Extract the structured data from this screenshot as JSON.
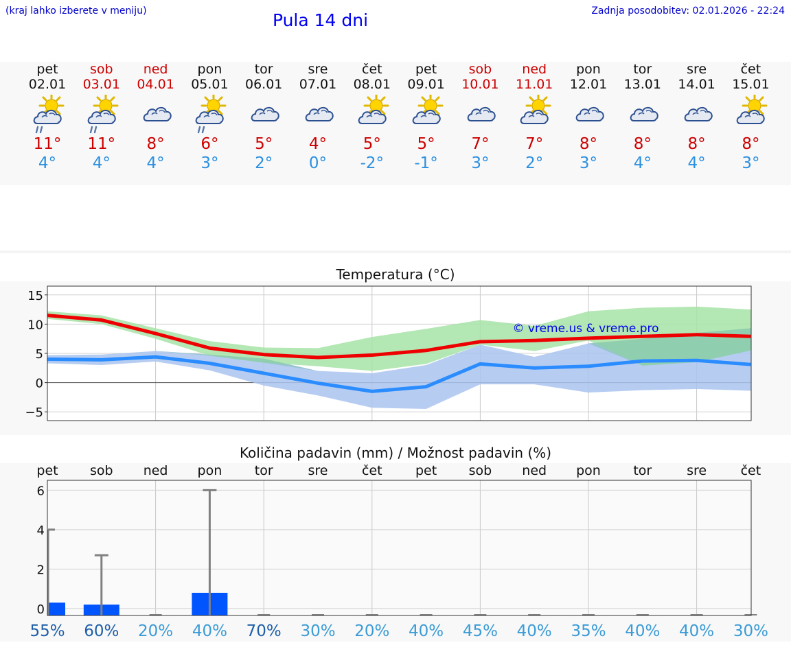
{
  "header": {
    "note": "(kraj lahko izberete v meniju)",
    "title": "Pula 14 dni",
    "updated_label": "Zadnja posodobitev:",
    "updated_value": "02.01.2026 - 22:24"
  },
  "days": [
    {
      "name": "pet",
      "date": "02.01",
      "weekend": false,
      "icon": "partly-cloudy-rain-icon",
      "tmax": "11°",
      "tmin": "4°"
    },
    {
      "name": "sob",
      "date": "03.01",
      "weekend": true,
      "icon": "partly-cloudy-rain-icon",
      "tmax": "11°",
      "tmin": "4°"
    },
    {
      "name": "ned",
      "date": "04.01",
      "weekend": true,
      "icon": "cloudy-icon",
      "tmax": "8°",
      "tmin": "4°"
    },
    {
      "name": "pon",
      "date": "05.01",
      "weekend": false,
      "icon": "partly-cloudy-rain-icon",
      "tmax": "6°",
      "tmin": "3°"
    },
    {
      "name": "tor",
      "date": "06.01",
      "weekend": false,
      "icon": "cloudy-icon",
      "tmax": "5°",
      "tmin": "2°"
    },
    {
      "name": "sre",
      "date": "07.01",
      "weekend": false,
      "icon": "cloudy-icon",
      "tmax": "4°",
      "tmin": "0°"
    },
    {
      "name": "čet",
      "date": "08.01",
      "weekend": false,
      "icon": "partly-cloudy-icon",
      "tmax": "5°",
      "tmin": "-2°"
    },
    {
      "name": "pet",
      "date": "09.01",
      "weekend": false,
      "icon": "partly-cloudy-icon",
      "tmax": "5°",
      "tmin": "-1°"
    },
    {
      "name": "sob",
      "date": "10.01",
      "weekend": true,
      "icon": "cloudy-icon",
      "tmax": "7°",
      "tmin": "3°"
    },
    {
      "name": "ned",
      "date": "11.01",
      "weekend": true,
      "icon": "partly-cloudy-icon",
      "tmax": "7°",
      "tmin": "2°"
    },
    {
      "name": "pon",
      "date": "12.01",
      "weekend": false,
      "icon": "cloudy-icon",
      "tmax": "8°",
      "tmin": "3°"
    },
    {
      "name": "tor",
      "date": "13.01",
      "weekend": false,
      "icon": "cloudy-icon",
      "tmax": "8°",
      "tmin": "4°"
    },
    {
      "name": "sre",
      "date": "14.01",
      "weekend": false,
      "icon": "cloudy-icon",
      "tmax": "8°",
      "tmin": "4°"
    },
    {
      "name": "čet",
      "date": "15.01",
      "weekend": false,
      "icon": "partly-cloudy-icon",
      "tmax": "8°",
      "tmin": "3°"
    }
  ],
  "colors": {
    "weekday": "#111111",
    "weekend": "#cc0000",
    "tmax_line": "#ee0000",
    "tmin_line": "#2a8cff",
    "tmax_band": "#a6e3a6",
    "tmin_band": "#a9c4ef",
    "band_overlap": "#7cbfae",
    "precip_bar": "#0055ff",
    "whisker": "#808080",
    "prob_low": "#3a9bd6",
    "prob_high": "#1f5fa8"
  },
  "chart_data": [
    {
      "type": "line",
      "title": "Temperatura (°C)",
      "watermark": "© vreme.us & vreme.pro",
      "xlabel": "",
      "ylabel": "",
      "ylim": [
        -6.5,
        16.5
      ],
      "yticks": [
        15,
        10,
        5,
        0,
        -5
      ],
      "ytick_labels": [
        "15",
        "10",
        "5",
        "0",
        "−5"
      ],
      "x": [
        0,
        1,
        2,
        3,
        4,
        5,
        6,
        7,
        8,
        9,
        10,
        11,
        12,
        13
      ],
      "series": [
        {
          "name": "max",
          "values": [
            11.5,
            10.7,
            8.4,
            5.9,
            4.8,
            4.3,
            4.7,
            5.5,
            7.0,
            7.2,
            7.6,
            7.9,
            8.2,
            7.9
          ]
        },
        {
          "name": "min",
          "values": [
            4.0,
            3.9,
            4.4,
            3.3,
            1.6,
            -0.1,
            -1.5,
            -0.7,
            3.2,
            2.5,
            2.8,
            3.7,
            3.8,
            3.1
          ]
        },
        {
          "name": "max_band_low",
          "values": [
            10.9,
            10.0,
            7.5,
            4.6,
            3.4,
            2.8,
            2.0,
            3.2,
            6.5,
            5.4,
            7.2,
            2.9,
            3.5,
            5.5
          ]
        },
        {
          "name": "max_band_high",
          "values": [
            12.2,
            11.5,
            9.3,
            7.1,
            6.0,
            5.9,
            7.8,
            9.2,
            10.7,
            9.7,
            12.2,
            12.8,
            13.0,
            12.5
          ]
        },
        {
          "name": "min_band_low",
          "values": [
            3.3,
            3.0,
            3.6,
            2.1,
            -0.5,
            -2.2,
            -4.3,
            -4.5,
            -0.3,
            -0.3,
            -1.7,
            -1.3,
            -1.1,
            -1.4
          ]
        },
        {
          "name": "min_band_high",
          "values": [
            4.7,
            4.8,
            5.4,
            4.8,
            4.1,
            2.0,
            1.6,
            3.0,
            6.5,
            4.4,
            6.7,
            7.5,
            8.5,
            9.3
          ]
        }
      ]
    },
    {
      "type": "bar",
      "title": "Količina padavin (mm) / Možnost padavin (%)",
      "categories": [
        "pet",
        "sob",
        "ned",
        "pon",
        "tor",
        "sre",
        "čet",
        "pet",
        "sob",
        "ned",
        "pon",
        "tor",
        "sre",
        "čet"
      ],
      "ylim": [
        -0.35,
        6.5
      ],
      "yticks": [
        0,
        2,
        4,
        6
      ],
      "ytick_labels": [
        "0",
        "2",
        "4",
        "6"
      ],
      "series": [
        {
          "name": "precip_mm",
          "values": [
            0.3,
            0.2,
            0,
            0.8,
            0,
            0,
            0,
            0,
            0,
            0,
            0,
            0,
            0,
            0
          ]
        },
        {
          "name": "precip_max_mm",
          "values": [
            4.0,
            2.7,
            0,
            6.0,
            0,
            0,
            0,
            0,
            0,
            0,
            0,
            0,
            0,
            0
          ]
        },
        {
          "name": "probability_percent",
          "values": [
            55,
            60,
            20,
            40,
            70,
            30,
            20,
            40,
            45,
            40,
            35,
            40,
            40,
            30
          ]
        }
      ]
    }
  ]
}
